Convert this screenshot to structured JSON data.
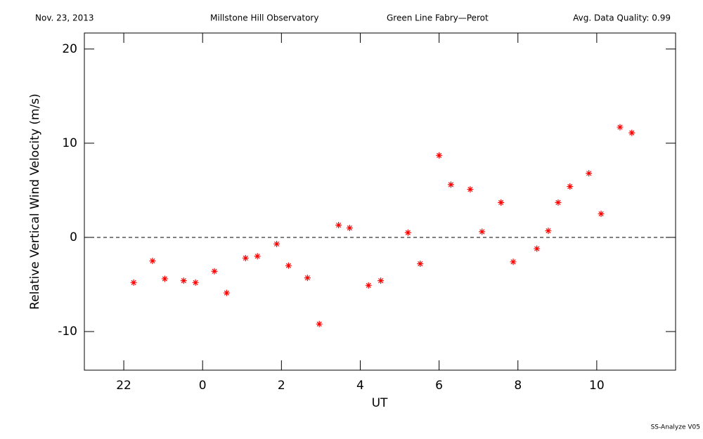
{
  "header": {
    "date": "Nov. 23, 2013",
    "site": "Millstone Hill Observatory",
    "instrument": "Green Line Fabry—Perot",
    "quality": "Avg. Data Quality: 0.99"
  },
  "footer": "SS-Analyze V05",
  "chart_data": {
    "type": "scatter",
    "x_label": "UT",
    "y_label": "Relative Vertical Wind Velocity (m/s)",
    "marker": "asterisk",
    "color": "#ff0000",
    "x": [
      22.25,
      22.73,
      23.04,
      23.52,
      23.82,
      24.3,
      24.61,
      25.09,
      25.39,
      25.88,
      26.18,
      26.66,
      26.96,
      27.45,
      27.73,
      28.21,
      28.52,
      29.21,
      29.52,
      30.0,
      30.3,
      30.79,
      31.09,
      31.57,
      31.88,
      32.48,
      32.77,
      33.02,
      33.32,
      33.8,
      34.11,
      34.59,
      34.89
    ],
    "values": [
      -4.8,
      -2.5,
      -4.4,
      -4.6,
      -4.8,
      -3.6,
      -5.9,
      -2.2,
      -2.0,
      -0.7,
      -3.0,
      -4.3,
      -9.2,
      1.3,
      1.0,
      -5.1,
      -4.6,
      0.5,
      -2.8,
      8.7,
      5.6,
      5.1,
      0.6,
      3.7,
      -2.6,
      -1.2,
      0.7,
      3.7,
      5.4,
      6.8,
      2.5,
      11.7,
      11.1
    ],
    "xlim": [
      21,
      36
    ],
    "ylim": [
      -14.1,
      21.7
    ],
    "xticks": [
      22,
      {
        "value": 24,
        "label": "0"
      },
      {
        "value": 26,
        "label": "2"
      },
      {
        "value": 28,
        "label": "4"
      },
      {
        "value": 30,
        "label": "6"
      },
      {
        "value": 32,
        "label": "8"
      },
      {
        "value": 34,
        "label": "10"
      }
    ],
    "yticks": [
      -10,
      0,
      10,
      20
    ],
    "reference_line": 0
  }
}
